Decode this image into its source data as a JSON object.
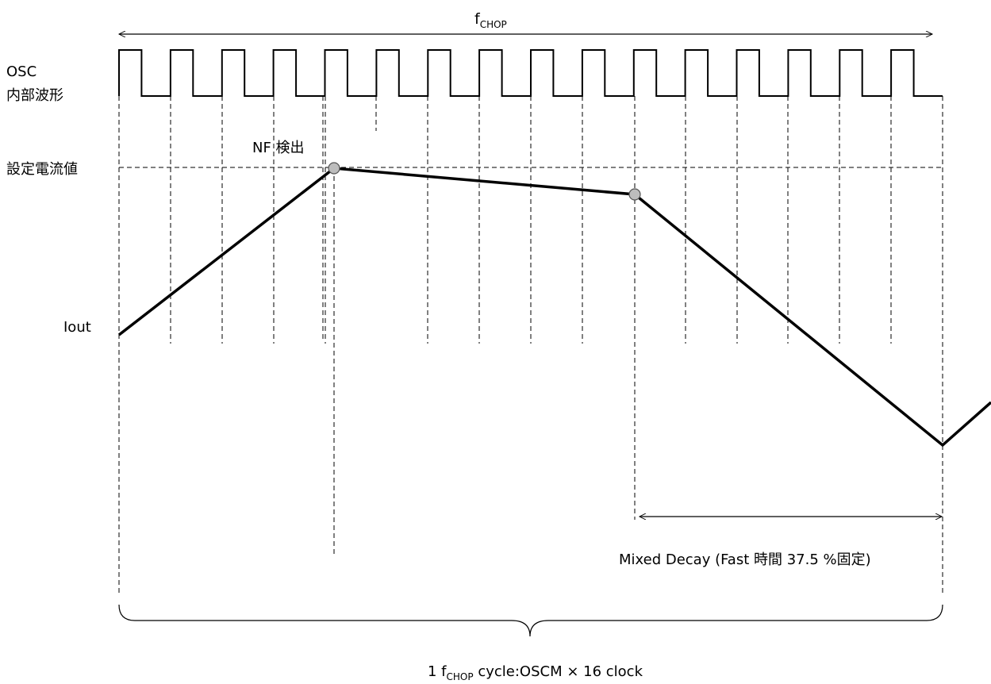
{
  "labels": {
    "fchop_symbol": "f",
    "fchop_subscript": "CHOP",
    "osc": "OSC",
    "osc_waveform": "内部波形",
    "set_current": "設定電流値",
    "iout": "Iout",
    "nf_detect": "NF 検出",
    "mixed_decay": "Mixed Decay (Fast 時間 37.5 %固定)",
    "cycle_prefix": "1 f",
    "cycle_subscript": "CHOP",
    "cycle_suffix": " cycle:OSCM × 16 clock"
  },
  "diagram": {
    "clock_cycles": 16,
    "mixed_decay_fast_fraction": 0.375,
    "colors": {
      "line": "#000000",
      "marker_fill": "#bdbdbd",
      "marker_stroke": "#555555",
      "background": "#ffffff"
    }
  }
}
